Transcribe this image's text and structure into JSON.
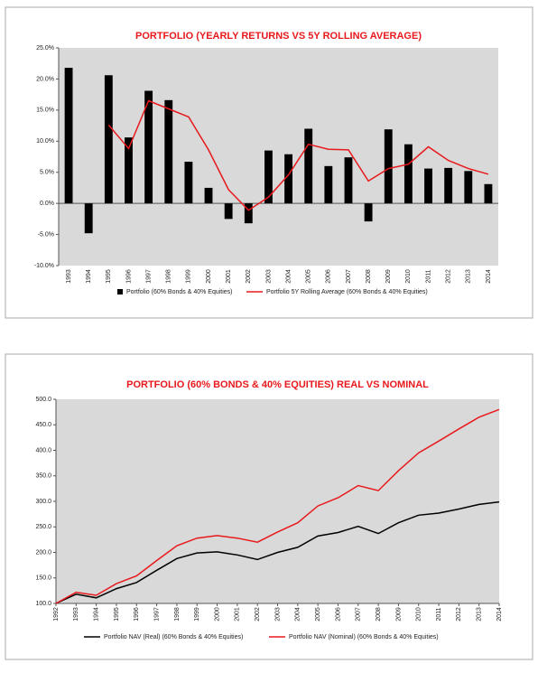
{
  "chart_data": [
    {
      "type": "bar",
      "title": "PORTFOLIO (YEARLY RETURNS VS 5Y ROLLING AVERAGE)",
      "categories": [
        "1993",
        "1994",
        "1995",
        "1996",
        "1997",
        "1998",
        "1999",
        "2000",
        "2001",
        "2002",
        "2003",
        "2004",
        "2005",
        "2006",
        "2007",
        "2008",
        "2009",
        "2010",
        "2011",
        "2012",
        "2013",
        "2014"
      ],
      "series": [
        {
          "name": "Portfolio  (60% Bonds & 40% Equities)",
          "type": "bar",
          "color": "#000000",
          "values": [
            21.8,
            -4.8,
            20.6,
            10.6,
            18.1,
            16.6,
            6.7,
            2.5,
            -2.5,
            -3.2,
            8.5,
            7.9,
            12.0,
            6.0,
            7.4,
            -2.9,
            11.9,
            9.5,
            5.6,
            5.7,
            5.2,
            3.1
          ]
        },
        {
          "name": "Portfolio 5Y Rolling Average (60% Bonds & 40% Equities)",
          "type": "line",
          "color": "#e8191c",
          "values": [
            null,
            null,
            12.6,
            8.8,
            16.5,
            15.2,
            13.9,
            8.6,
            2.2,
            -1.1,
            1.0,
            4.6,
            9.5,
            8.7,
            8.6,
            3.6,
            5.6,
            6.3,
            9.1,
            6.9,
            5.6,
            4.7
          ]
        }
      ],
      "ylim": [
        -10,
        25
      ],
      "yticks": [
        {
          "value": -10,
          "label": "-10.0%"
        },
        {
          "value": -5,
          "label": "-5.0%"
        },
        {
          "value": 0,
          "label": "0.0%"
        },
        {
          "value": 5,
          "label": "5.0%"
        },
        {
          "value": 10,
          "label": "10.0%"
        },
        {
          "value": 15,
          "label": "15.0%"
        },
        {
          "value": 20,
          "label": "20.0%"
        },
        {
          "value": 25,
          "label": "25.0%"
        }
      ],
      "grid": false
    },
    {
      "type": "line",
      "title": "PORTFOLIO (60% BONDS & 40% EQUITIES) REAL VS NOMINAL",
      "x": [
        1992,
        1993,
        1994,
        1995,
        1996,
        1997,
        1998,
        1999,
        2000,
        2001,
        2002,
        2003,
        2004,
        2005,
        2006,
        2007,
        2008,
        2009,
        2010,
        2011,
        2012,
        2013,
        2014
      ],
      "xlim": [
        1992,
        2014
      ],
      "xticks": [
        1992,
        1993,
        1994,
        1995,
        1996,
        1997,
        1998,
        1999,
        2000,
        2001,
        2002,
        2003,
        2004,
        2005,
        2006,
        2007,
        2008,
        2009,
        2010,
        2011,
        2012,
        2013,
        2014
      ],
      "series": [
        {
          "name": "Portfolio NAV (Real) (60% Bonds & 40% Equities)",
          "type": "line",
          "color": "#000000",
          "values": [
            100,
            118,
            111,
            129,
            141,
            165,
            188,
            199,
            201,
            195,
            186,
            200,
            210,
            232,
            239,
            251,
            237,
            258,
            273,
            277,
            285,
            294,
            299
          ]
        },
        {
          "name": "Portfolio NAV (Nominal) (60% Bonds & 40% Equities)",
          "type": "line",
          "color": "#e8191c",
          "values": [
            100,
            122,
            116,
            139,
            154,
            184,
            213,
            228,
            233,
            228,
            220,
            240,
            258,
            291,
            307,
            331,
            321,
            360,
            395,
            418,
            442,
            465,
            480
          ]
        }
      ],
      "ylim": [
        100,
        500
      ],
      "yticks": [
        {
          "value": 100,
          "label": "100.0"
        },
        {
          "value": 150,
          "label": "150.0"
        },
        {
          "value": 200,
          "label": "200.0"
        },
        {
          "value": 250,
          "label": "250.0"
        },
        {
          "value": 300,
          "label": "300.0"
        },
        {
          "value": 350,
          "label": "350.0"
        },
        {
          "value": 400,
          "label": "400.0"
        },
        {
          "value": 450,
          "label": "450.0"
        },
        {
          "value": 500,
          "label": "500.0"
        }
      ],
      "grid": false
    }
  ]
}
